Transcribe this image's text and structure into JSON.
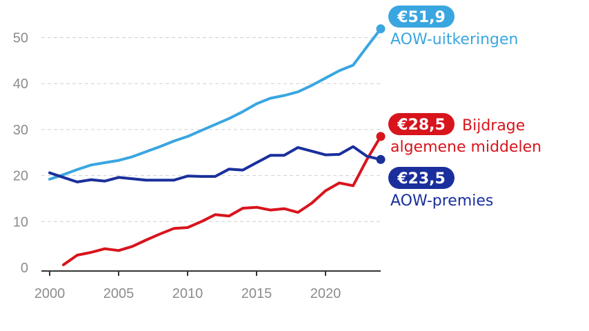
{
  "chart_data": {
    "type": "line",
    "title": "",
    "xlabel": "",
    "ylabel": "",
    "xlim": [
      2000,
      2024
    ],
    "ylim": [
      0,
      55
    ],
    "x_ticks": [
      2000,
      2005,
      2010,
      2015,
      2020
    ],
    "y_ticks": [
      0,
      10,
      20,
      30,
      40,
      50
    ],
    "grid": true,
    "series": [
      {
        "key": "uitkeringen",
        "name": "AOW-uitkeringen",
        "color": "#3aa6e0",
        "x": [
          2000,
          2001,
          2002,
          2003,
          2004,
          2005,
          2006,
          2007,
          2008,
          2009,
          2010,
          2011,
          2012,
          2013,
          2014,
          2015,
          2016,
          2017,
          2018,
          2019,
          2020,
          2021,
          2022,
          2023,
          2024
        ],
        "values": [
          19.2,
          20.2,
          21.3,
          22.3,
          22.8,
          23.3,
          24.1,
          25.2,
          26.3,
          27.5,
          28.5,
          29.8,
          31.1,
          32.4,
          33.9,
          35.6,
          36.8,
          37.4,
          38.2,
          39.6,
          41.2,
          42.8,
          44.0,
          48.0,
          51.9
        ],
        "end_badge": "€51,9",
        "label_lines": [
          "AOW-uitkeringen"
        ]
      },
      {
        "key": "bijdrage",
        "name": "Bijdrage algemene middelen",
        "color": "#d8141c",
        "x": [
          2001,
          2002,
          2003,
          2004,
          2005,
          2006,
          2007,
          2008,
          2009,
          2010,
          2011,
          2012,
          2013,
          2014,
          2015,
          2016,
          2017,
          2018,
          2019,
          2020,
          2021,
          2022,
          2023,
          2024
        ],
        "values": [
          0.6,
          2.7,
          3.3,
          4.1,
          3.7,
          4.6,
          6.0,
          7.3,
          8.5,
          8.7,
          10.0,
          11.5,
          11.2,
          12.9,
          13.1,
          12.5,
          12.8,
          12.0,
          14.0,
          16.7,
          18.4,
          17.8,
          23.5,
          28.5
        ],
        "end_badge": "€28,5",
        "label_lines": [
          "Bijdrage",
          "algemene middelen"
        ]
      },
      {
        "key": "premies",
        "name": "AOW-premies",
        "color": "#1a2f9c",
        "x": [
          2000,
          2001,
          2002,
          2003,
          2004,
          2005,
          2006,
          2007,
          2008,
          2009,
          2010,
          2011,
          2012,
          2013,
          2014,
          2015,
          2016,
          2017,
          2018,
          2019,
          2020,
          2021,
          2022,
          2023,
          2024
        ],
        "values": [
          20.6,
          19.6,
          18.6,
          19.1,
          18.8,
          19.6,
          19.3,
          19.0,
          19.0,
          19.0,
          19.9,
          19.8,
          19.8,
          21.4,
          21.2,
          22.8,
          24.4,
          24.4,
          26.1,
          25.3,
          24.5,
          24.6,
          26.3,
          24.2,
          23.5
        ],
        "end_badge": "€23,5",
        "label_lines": [
          "AOW-premies"
        ]
      }
    ]
  }
}
